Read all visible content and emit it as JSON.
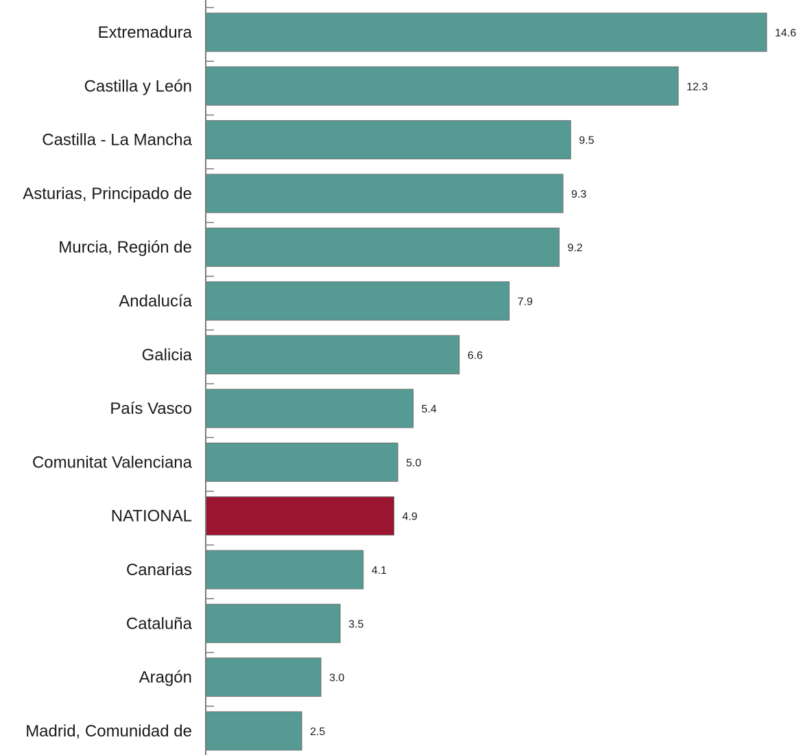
{
  "chart_data": {
    "type": "bar",
    "orientation": "horizontal",
    "categories": [
      "Extremadura",
      "Castilla y León",
      "Castilla - La Mancha",
      "Asturias, Principado de",
      "Murcia, Región de",
      "Andalucía",
      "Galicia",
      "País Vasco",
      "Comunitat Valenciana",
      "NATIONAL",
      "Canarias",
      "Cataluña",
      "Aragón",
      "Madrid, Comunidad de"
    ],
    "values": [
      14.6,
      12.3,
      9.5,
      9.3,
      9.2,
      7.9,
      6.6,
      5.4,
      5.0,
      4.9,
      4.1,
      3.5,
      3.0,
      2.5
    ],
    "value_labels": [
      "14.6",
      "12.3",
      "9.5",
      "9.3",
      "9.2",
      "7.9",
      "6.6",
      "5.4",
      "5.0",
      "4.9",
      "4.1",
      "3.5",
      "3.0",
      "2.5"
    ],
    "highlight_category": "NATIONAL",
    "colors": {
      "default_bar": "#559b94",
      "highlight_bar": "#9b1531",
      "bar_edge": "#6f6f6f",
      "axis": "#7a7a7a"
    },
    "title": "",
    "xlabel": "",
    "ylabel": "",
    "xlim": [
      0,
      14.6
    ],
    "grid": false,
    "legend": "none"
  }
}
